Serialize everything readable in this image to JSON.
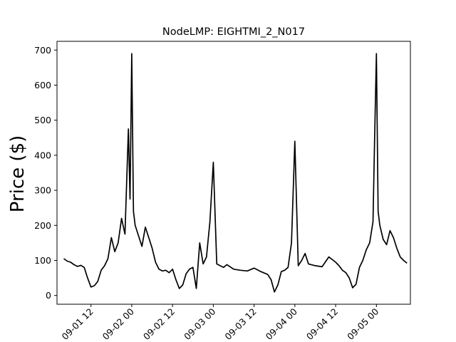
{
  "chart_data": {
    "type": "line",
    "title": "NodeLMP: EIGHTMI_2_N017",
    "xlabel": "",
    "ylabel": "Price ($)",
    "x_unit": "datetime",
    "xlim": [
      "09-01 02:00",
      "09-05 10:00"
    ],
    "ylim": [
      -25,
      725
    ],
    "grid": false,
    "legend": "none",
    "line_color": "#000000",
    "y_ticks": [
      0,
      100,
      200,
      300,
      400,
      500,
      600,
      700
    ],
    "y_tick_labels": [
      "0",
      "100",
      "200",
      "300",
      "400",
      "500",
      "600",
      "700"
    ],
    "x_ticks": [
      "09-01 12:00",
      "09-02 00:00",
      "09-02 12:00",
      "09-03 00:00",
      "09-03 12:00",
      "09-04 00:00",
      "09-04 12:00",
      "09-05 00:00"
    ],
    "x_tick_labels": [
      "09-01 12",
      "09-02 00",
      "09-02 12",
      "09-03 00",
      "09-03 12",
      "09-04 00",
      "09-04 12",
      "09-05 00"
    ],
    "series": [
      {
        "x": [
          "09-01 04:00",
          "09-01 05:00",
          "09-01 06:00",
          "09-01 07:00",
          "09-01 08:00",
          "09-01 09:00",
          "09-01 10:00",
          "09-01 11:00",
          "09-01 12:00",
          "09-01 13:00",
          "09-01 14:00",
          "09-01 15:00",
          "09-01 16:00",
          "09-01 17:00",
          "09-01 18:00",
          "09-01 19:00",
          "09-01 20:00",
          "09-01 21:00",
          "09-01 22:00",
          "09-01 23:00",
          "09-01 23:30",
          "09-02 00:00",
          "09-02 00:30",
          "09-02 01:00",
          "09-02 02:00",
          "09-02 03:00",
          "09-02 04:00",
          "09-02 05:00",
          "09-02 06:00",
          "09-02 07:00",
          "09-02 08:00",
          "09-02 09:00",
          "09-02 10:00",
          "09-02 11:00",
          "09-02 12:00",
          "09-02 13:00",
          "09-02 14:00",
          "09-02 15:00",
          "09-02 16:00",
          "09-02 17:00",
          "09-02 18:00",
          "09-02 19:00",
          "09-02 20:00",
          "09-02 21:00",
          "09-02 22:00",
          "09-02 23:00",
          "09-03 00:00",
          "09-03 01:00",
          "09-03 02:00",
          "09-03 03:00",
          "09-03 04:00",
          "09-03 06:00",
          "09-03 08:00",
          "09-03 10:00",
          "09-03 12:00",
          "09-03 14:00",
          "09-03 16:00",
          "09-03 17:00",
          "09-03 18:00",
          "09-03 19:00",
          "09-03 20:00",
          "09-03 21:00",
          "09-03 22:00",
          "09-03 23:00",
          "09-04 00:00",
          "09-04 01:00",
          "09-04 02:00",
          "09-04 03:00",
          "09-04 04:00",
          "09-04 06:00",
          "09-04 08:00",
          "09-04 10:00",
          "09-04 12:00",
          "09-04 13:00",
          "09-04 14:00",
          "09-04 15:00",
          "09-04 16:00",
          "09-04 17:00",
          "09-04 18:00",
          "09-04 19:00",
          "09-04 20:00",
          "09-04 21:00",
          "09-04 22:00",
          "09-04 23:00",
          "09-04 23:30",
          "09-05 00:00",
          "09-05 00:30",
          "09-05 01:00",
          "09-05 02:00",
          "09-05 03:00",
          "09-05 04:00",
          "09-05 05:00",
          "09-05 06:00",
          "09-05 07:00",
          "09-05 08:00",
          "09-05 09:00"
        ],
        "values": [
          105,
          98,
          95,
          88,
          83,
          86,
          80,
          50,
          24,
          28,
          40,
          72,
          85,
          105,
          165,
          125,
          150,
          220,
          175,
          475,
          275,
          690,
          240,
          200,
          170,
          140,
          195,
          165,
          135,
          95,
          75,
          70,
          72,
          65,
          75,
          45,
          20,
          30,
          62,
          75,
          80,
          20,
          150,
          90,
          110,
          210,
          380,
          90,
          85,
          80,
          88,
          75,
          72,
          70,
          78,
          68,
          60,
          45,
          10,
          30,
          68,
          72,
          80,
          150,
          440,
          85,
          100,
          120,
          90,
          85,
          82,
          110,
          95,
          85,
          72,
          65,
          50,
          22,
          32,
          80,
          100,
          130,
          150,
          210,
          460,
          690,
          240,
          200,
          160,
          145,
          185,
          165,
          135,
          110,
          100,
          92
        ]
      }
    ]
  }
}
